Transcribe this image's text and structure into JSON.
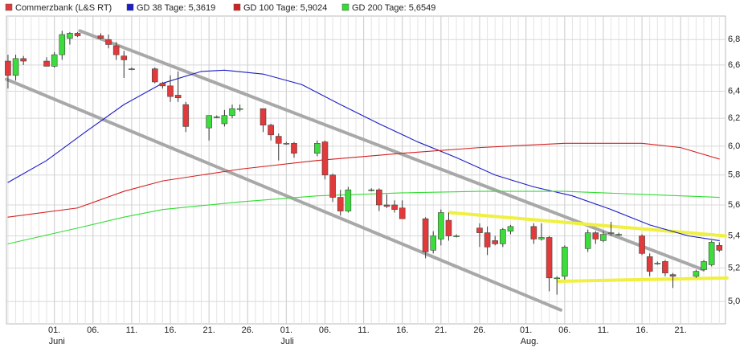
{
  "chart_data": {
    "type": "candlestick",
    "log_scale": true,
    "grid": true,
    "xlim": [
      -6.2,
      86.8
    ],
    "ylim": [
      4.87,
      6.99
    ],
    "yticks": [
      {
        "value": 5.0,
        "label": "5,0"
      },
      {
        "value": 5.2,
        "label": "5,2"
      },
      {
        "value": 5.4,
        "label": "5,4"
      },
      {
        "value": 5.6,
        "label": "5,6"
      },
      {
        "value": 5.8,
        "label": "5,8"
      },
      {
        "value": 6.0,
        "label": "6,0"
      },
      {
        "value": 6.2,
        "label": "6,2"
      },
      {
        "value": 6.4,
        "label": "6,4"
      },
      {
        "value": 6.6,
        "label": "6,6"
      },
      {
        "value": 6.8,
        "label": "6,8"
      }
    ],
    "xticks": [
      {
        "value": 0,
        "label": "01."
      },
      {
        "value": 5,
        "label": "06."
      },
      {
        "value": 10,
        "label": "11."
      },
      {
        "value": 15,
        "label": "16."
      },
      {
        "value": 20,
        "label": "21."
      },
      {
        "value": 25,
        "label": "26."
      },
      {
        "value": 30,
        "label": "01."
      },
      {
        "value": 35,
        "label": "06."
      },
      {
        "value": 40,
        "label": "11."
      },
      {
        "value": 45,
        "label": "16."
      },
      {
        "value": 50,
        "label": "21."
      },
      {
        "value": 55,
        "label": "26."
      },
      {
        "value": 61,
        "label": "01."
      },
      {
        "value": 66,
        "label": "06."
      },
      {
        "value": 71,
        "label": "11."
      },
      {
        "value": 76,
        "label": "16."
      },
      {
        "value": 81,
        "label": "21."
      }
    ],
    "month_labels": [
      {
        "value": 0,
        "label": "Juni"
      },
      {
        "value": 30,
        "label": "Juli"
      },
      {
        "value": 61,
        "label": "Aug."
      }
    ],
    "candles": {
      "name": "Commerzbank (L&S RT)",
      "color": "#e23a3a",
      "up_color": "#3ddc3d",
      "x": [
        -6,
        -5,
        -4,
        -1,
        0,
        1,
        2,
        3,
        6,
        7,
        8,
        9,
        10,
        13,
        14,
        15,
        16,
        17,
        20,
        21,
        22,
        23,
        24,
        27,
        28,
        29,
        30,
        31,
        34,
        35,
        36,
        37,
        38,
        41,
        42,
        43,
        44,
        45,
        48,
        49,
        50,
        51,
        52,
        55,
        56,
        57,
        58,
        59,
        62,
        63,
        64,
        65,
        66,
        69,
        70,
        71,
        72,
        73,
        76,
        77,
        78,
        79,
        80,
        83,
        84,
        85,
        86
      ],
      "open": [
        6.63,
        6.52,
        6.65,
        6.63,
        6.59,
        6.68,
        6.81,
        6.85,
        6.83,
        6.8,
        6.75,
        6.67,
        6.57,
        6.57,
        6.46,
        6.44,
        6.37,
        6.3,
        6.13,
        6.21,
        6.16,
        6.22,
        6.27,
        6.27,
        6.15,
        6.07,
        6.02,
        6.02,
        5.95,
        6.03,
        5.8,
        5.65,
        5.56,
        5.7,
        5.7,
        5.6,
        5.6,
        5.58,
        5.51,
        5.31,
        5.38,
        5.5,
        5.4,
        5.45,
        5.42,
        5.37,
        5.35,
        5.43,
        5.46,
        5.38,
        5.39,
        5.14,
        5.15,
        5.32,
        5.42,
        5.37,
        5.42,
        5.41,
        5.4,
        5.27,
        5.23,
        5.24,
        5.16,
        5.15,
        5.19,
        5.22,
        5.34
      ],
      "high": [
        6.68,
        6.68,
        6.67,
        6.66,
        6.7,
        6.87,
        6.86,
        6.86,
        6.85,
        6.84,
        6.78,
        6.71,
        6.58,
        6.58,
        6.47,
        6.52,
        6.55,
        6.32,
        6.19,
        6.22,
        6.26,
        6.3,
        6.3,
        6.27,
        6.16,
        6.09,
        6.03,
        6.03,
        6.04,
        6.04,
        5.81,
        5.7,
        5.72,
        5.71,
        5.71,
        5.67,
        5.63,
        5.63,
        5.52,
        5.43,
        5.57,
        5.55,
        5.41,
        5.48,
        5.46,
        5.4,
        5.45,
        5.47,
        5.48,
        5.48,
        5.4,
        5.15,
        5.34,
        5.44,
        5.43,
        5.43,
        5.49,
        5.42,
        5.41,
        5.29,
        5.24,
        5.25,
        5.17,
        5.19,
        5.25,
        5.37,
        5.36
      ],
      "low": [
        6.42,
        6.48,
        6.6,
        6.59,
        6.58,
        6.64,
        6.76,
        6.82,
        6.8,
        6.73,
        6.64,
        6.5,
        6.56,
        6.46,
        6.42,
        6.32,
        6.32,
        6.1,
        6.04,
        6.2,
        6.14,
        6.2,
        6.25,
        6.1,
        6.04,
        5.9,
        6.01,
        5.92,
        5.93,
        5.77,
        5.62,
        5.53,
        5.55,
        5.69,
        5.56,
        5.58,
        5.55,
        5.52,
        5.26,
        5.29,
        5.34,
        5.37,
        5.39,
        5.33,
        5.28,
        5.34,
        5.33,
        5.41,
        5.35,
        5.37,
        5.06,
        5.04,
        5.13,
        5.3,
        5.35,
        5.36,
        5.4,
        5.4,
        5.28,
        5.15,
        5.22,
        5.15,
        5.08,
        5.14,
        5.18,
        5.21,
        5.3
      ],
      "close": [
        6.52,
        6.65,
        6.63,
        6.59,
        6.68,
        6.84,
        6.85,
        6.83,
        6.81,
        6.76,
        6.68,
        6.64,
        6.57,
        6.47,
        6.44,
        6.36,
        6.35,
        6.14,
        6.22,
        6.21,
        6.22,
        6.27,
        6.27,
        6.15,
        6.08,
        6.02,
        6.02,
        5.95,
        6.02,
        5.8,
        5.65,
        5.56,
        5.7,
        5.7,
        5.6,
        5.59,
        5.57,
        5.51,
        5.3,
        5.4,
        5.55,
        5.4,
        5.4,
        5.42,
        5.33,
        5.35,
        5.44,
        5.46,
        5.38,
        5.39,
        5.14,
        5.14,
        5.33,
        5.42,
        5.38,
        5.41,
        5.42,
        5.41,
        5.29,
        5.18,
        5.23,
        5.17,
        5.15,
        5.18,
        5.24,
        5.36,
        5.31
      ]
    },
    "series": [
      {
        "name": "GD 38 Tage: 5,3619",
        "color": "#1c1cc8",
        "x": [
          -6,
          -1,
          4,
          9,
          14,
          19,
          22,
          27,
          32,
          37,
          42,
          47,
          52,
          57,
          62,
          67,
          72,
          77,
          82,
          86
        ],
        "values": [
          5.75,
          5.9,
          6.1,
          6.3,
          6.46,
          6.55,
          6.56,
          6.53,
          6.45,
          6.3,
          6.16,
          6.03,
          5.92,
          5.8,
          5.72,
          5.66,
          5.57,
          5.47,
          5.4,
          5.37
        ]
      },
      {
        "name": "GD 100 Tage: 5,9024",
        "color": "#d42020",
        "x": [
          -6,
          3,
          9,
          14,
          24,
          34,
          45,
          55,
          66,
          76,
          81,
          86
        ],
        "values": [
          5.52,
          5.58,
          5.69,
          5.76,
          5.84,
          5.9,
          5.95,
          5.99,
          6.02,
          6.02,
          5.99,
          5.91
        ]
      },
      {
        "name": "GD 200 Tage: 5,6549",
        "color": "#33dd33",
        "x": [
          -6,
          3,
          9,
          14,
          24,
          34,
          45,
          55,
          66,
          76,
          86
        ],
        "values": [
          5.35,
          5.45,
          5.52,
          5.57,
          5.62,
          5.66,
          5.68,
          5.69,
          5.69,
          5.67,
          5.65
        ]
      }
    ],
    "trendlines": [
      {
        "color": "#a8a8a8",
        "x": [
          3.3,
          83.9
        ],
        "values": [
          6.87,
          5.19
        ]
      },
      {
        "color": "#a8a8a8",
        "x": [
          -6.2,
          65.5
        ],
        "values": [
          6.49,
          4.95
        ]
      },
      {
        "color": "#f0f040",
        "x": [
          51.1,
          86.8
        ],
        "values": [
          5.55,
          5.4
        ]
      },
      {
        "color": "#f0f040",
        "x": [
          65.2,
          87
        ],
        "values": [
          5.12,
          5.14
        ]
      }
    ]
  }
}
